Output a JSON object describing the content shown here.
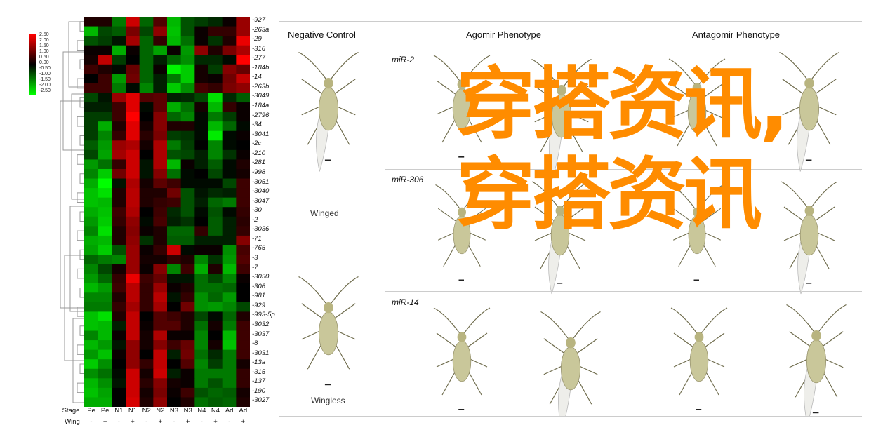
{
  "chart_data": {
    "type": "heatmap",
    "color_scale": {
      "min": -2.5,
      "max": 2.5,
      "colors": [
        "#00ff00",
        "#000000",
        "#ff0000"
      ],
      "ticks": [
        "2.50",
        "2.00",
        "1.50",
        "1.00",
        "0.50",
        "0.00",
        "-0.50",
        "-1.00",
        "-1.50",
        "-2.00",
        "-2.50"
      ]
    },
    "stage_label": "Stage",
    "wing_label": "Wing",
    "columns": [
      {
        "stage": "Pe",
        "wing": "-"
      },
      {
        "stage": "Pe",
        "wing": "+"
      },
      {
        "stage": "N1",
        "wing": "-"
      },
      {
        "stage": "N1",
        "wing": "+"
      },
      {
        "stage": "N2",
        "wing": "-"
      },
      {
        "stage": "N2",
        "wing": "+"
      },
      {
        "stage": "N3",
        "wing": "-"
      },
      {
        "stage": "N3",
        "wing": "+"
      },
      {
        "stage": "N4",
        "wing": "-"
      },
      {
        "stage": "N4",
        "wing": "+"
      },
      {
        "stage": "Ad",
        "wing": "-"
      },
      {
        "stage": "Ad",
        "wing": "+"
      }
    ],
    "rows": [
      "-927",
      "-263a",
      "-29",
      "-316",
      "-277",
      "-184b",
      "-14",
      "-263b",
      "-3049",
      "-184a",
      "-2796",
      "-34",
      "-3041",
      "-2c",
      "-210",
      "-281",
      "-998",
      "-3051",
      "-3040",
      "-3047",
      "-30",
      "-2",
      "-3036",
      "-71",
      "-765",
      "-3",
      "-7",
      "-3050",
      "-306",
      "-981",
      "-929",
      "-993-5p",
      "-3032",
      "-3037",
      "-8",
      "-3031",
      "-13a",
      "-315",
      "-137",
      "-190",
      "-3027"
    ],
    "values": [
      [
        0.3,
        0.3,
        -1.2,
        2.0,
        -1.0,
        0.8,
        -1.8,
        -0.8,
        -0.6,
        -0.4,
        0.1,
        1.5
      ],
      [
        -1.8,
        -0.7,
        -0.9,
        1.2,
        -0.7,
        1.4,
        -1.9,
        -0.8,
        0.1,
        0.5,
        0.5,
        1.5
      ],
      [
        -0.8,
        -0.6,
        -0.2,
        1.6,
        -1.0,
        0.5,
        -1.8,
        -1.1,
        0.1,
        -0.5,
        0.3,
        2.3
      ],
      [
        0.1,
        0.1,
        -1.7,
        0.1,
        -1.0,
        -1.6,
        0.1,
        -1.5,
        1.4,
        0.3,
        1.2,
        1.7
      ],
      [
        0.2,
        1.9,
        -0.6,
        0.0,
        -1.0,
        -0.3,
        -1.0,
        -1.4,
        -0.4,
        -0.4,
        -0.1,
        2.5
      ],
      [
        0.6,
        0.3,
        -0.1,
        1.0,
        -1.0,
        0.1,
        -2.4,
        -2.0,
        0.2,
        -0.6,
        1.3,
        1.0
      ],
      [
        0.0,
        0.6,
        -1.5,
        1.1,
        -1.0,
        -0.3,
        -1.2,
        -2.0,
        0.2,
        0.1,
        1.1,
        1.9
      ],
      [
        0.6,
        0.6,
        -1.2,
        -0.1,
        -1.3,
        -0.3,
        -2.0,
        -1.4,
        0.7,
        0.5,
        1.2,
        1.4
      ],
      [
        -0.7,
        -0.2,
        1.5,
        2.2,
        0.8,
        0.9,
        -0.3,
        -0.4,
        -0.7,
        -2.2,
        -0.4,
        -0.9
      ],
      [
        -0.3,
        -0.3,
        0.6,
        2.2,
        -0.1,
        0.9,
        -1.7,
        -1.1,
        0.2,
        -1.8,
        0.5,
        0.1
      ],
      [
        -0.6,
        -0.6,
        0.6,
        2.5,
        0.0,
        1.3,
        -1.0,
        -1.3,
        -0.1,
        -1.2,
        -0.6,
        0.1
      ],
      [
        -0.6,
        -1.7,
        0.3,
        2.2,
        0.2,
        1.3,
        0.3,
        0.3,
        -0.1,
        -1.8,
        -1.0,
        -0.1
      ],
      [
        -0.6,
        -1.3,
        0.5,
        2.2,
        0.4,
        1.2,
        -0.6,
        -0.5,
        -0.1,
        -2.3,
        -0.1,
        0.1
      ],
      [
        -0.9,
        -1.5,
        1.5,
        1.7,
        0.2,
        1.7,
        -1.2,
        -0.6,
        0.0,
        -1.3,
        -0.1,
        0.0
      ],
      [
        -0.7,
        -1.6,
        1.6,
        2.0,
        0.0,
        1.7,
        -0.8,
        -0.7,
        -0.3,
        -1.3,
        -0.5,
        0.1
      ],
      [
        -1.5,
        -1.1,
        0.5,
        2.0,
        -0.2,
        1.7,
        -1.8,
        0.1,
        -0.3,
        -0.9,
        -0.1,
        0.3
      ],
      [
        -1.3,
        -2.0,
        1.1,
        2.0,
        -0.2,
        1.3,
        -1.1,
        -0.1,
        0.0,
        -0.7,
        -0.1,
        0.2
      ],
      [
        -1.7,
        -2.5,
        -0.2,
        1.7,
        0.2,
        0.9,
        0.6,
        -0.1,
        -0.1,
        -0.1,
        -0.7,
        0.6
      ],
      [
        -1.9,
        -2.2,
        0.3,
        1.8,
        0.3,
        0.3,
        1.1,
        -0.8,
        -0.2,
        -0.4,
        -0.3,
        0.6
      ],
      [
        -1.9,
        -1.8,
        0.3,
        1.8,
        0.3,
        0.5,
        0.6,
        -0.8,
        -0.3,
        -1.0,
        -1.2,
        0.6
      ],
      [
        -1.7,
        -1.9,
        0.6,
        1.7,
        0.0,
        0.6,
        -0.4,
        -0.8,
        -0.1,
        -0.8,
        -0.1,
        0.5
      ],
      [
        -1.5,
        -2.0,
        0.5,
        1.4,
        -0.1,
        0.7,
        -0.3,
        -0.5,
        0.0,
        -0.9,
        -0.3,
        0.4
      ],
      [
        -1.3,
        -2.2,
        0.3,
        1.3,
        0.1,
        0.3,
        -1.0,
        -1.0,
        0.5,
        -0.9,
        -0.3,
        0.5
      ],
      [
        -1.7,
        -1.8,
        0.3,
        1.4,
        -0.5,
        0.3,
        -0.9,
        -0.9,
        -0.3,
        -0.3,
        -0.3,
        1.3
      ],
      [
        -1.6,
        -2.0,
        -0.8,
        1.5,
        0.1,
        0.5,
        2.0,
        -0.1,
        0.1,
        0.1,
        -1.4,
        0.7
      ],
      [
        -1.0,
        -1.2,
        -1.3,
        1.5,
        0.2,
        0.2,
        0.5,
        0.3,
        -1.3,
        -0.5,
        -1.5,
        0.8
      ],
      [
        -1.3,
        -0.7,
        0.2,
        1.5,
        0.1,
        1.3,
        -1.3,
        0.6,
        -1.7,
        0.3,
        -1.8,
        0.6
      ],
      [
        -1.5,
        -1.0,
        0.5,
        2.3,
        0.6,
        1.0,
        -0.2,
        -0.2,
        -1.1,
        -0.7,
        -1.3,
        0.1
      ],
      [
        -1.8,
        -1.5,
        0.6,
        1.8,
        0.5,
        1.5,
        0.1,
        0.3,
        -1.1,
        -1.1,
        -1.0,
        0.0
      ],
      [
        -1.3,
        -1.3,
        0.3,
        1.8,
        0.5,
        1.8,
        -0.2,
        0.5,
        -1.4,
        -1.0,
        -1.5,
        0.0
      ],
      [
        -1.2,
        -1.2,
        0.5,
        1.6,
        0.5,
        1.6,
        0.0,
        1.1,
        -1.4,
        -1.5,
        -1.3,
        -0.7
      ],
      [
        -1.9,
        -2.2,
        0.3,
        1.9,
        0.0,
        0.8,
        0.6,
        0.3,
        -0.7,
        -0.1,
        -1.0,
        0.3
      ],
      [
        -1.9,
        -1.8,
        -0.3,
        1.9,
        0.1,
        0.8,
        0.8,
        0.3,
        -1.1,
        0.2,
        -1.2,
        0.6
      ],
      [
        -1.3,
        -1.8,
        0.1,
        1.9,
        0.2,
        1.7,
        0.1,
        0.1,
        -1.3,
        0.0,
        -1.8,
        0.6
      ],
      [
        -1.8,
        -1.5,
        -0.2,
        1.4,
        0.2,
        1.3,
        0.6,
        1.0,
        -1.3,
        0.2,
        -1.9,
        0.6
      ],
      [
        -1.5,
        -1.9,
        0.1,
        1.4,
        0.0,
        1.9,
        -0.3,
        1.1,
        -1.1,
        -0.4,
        -1.2,
        0.6
      ],
      [
        -2.0,
        -1.4,
        0.0,
        1.4,
        0.5,
        1.9,
        0.0,
        0.8,
        -1.3,
        -0.6,
        -1.2,
        0.2
      ],
      [
        -1.4,
        -1.1,
        -0.1,
        2.0,
        0.2,
        2.0,
        -0.3,
        0.1,
        -1.2,
        -1.2,
        -1.2,
        0.5
      ],
      [
        -1.8,
        -1.4,
        -0.2,
        2.0,
        0.4,
        1.3,
        0.2,
        0.1,
        -1.2,
        -0.8,
        -1.2,
        0.5
      ],
      [
        -1.9,
        -1.6,
        0.0,
        2.0,
        0.2,
        1.2,
        0.1,
        0.6,
        -0.8,
        -1.0,
        -0.9,
        0.2
      ],
      [
        -1.7,
        -1.7,
        0.0,
        2.1,
        0.3,
        1.4,
        0.0,
        0.3,
        -1.1,
        -0.9,
        -1.0,
        0.3
      ]
    ]
  },
  "panel": {
    "headers": [
      "Negative Control",
      "Agomir Phenotype",
      "Antagomir Phenotype"
    ],
    "mirs": [
      "miR-2",
      "miR-306",
      "miR-14"
    ],
    "winged": "Winged",
    "wingless": "Wingless"
  },
  "watermark": "穿搭资讯,穿搭资讯",
  "colors": {
    "watermark": "#ff8c00",
    "aphid": "#c9c79a"
  }
}
